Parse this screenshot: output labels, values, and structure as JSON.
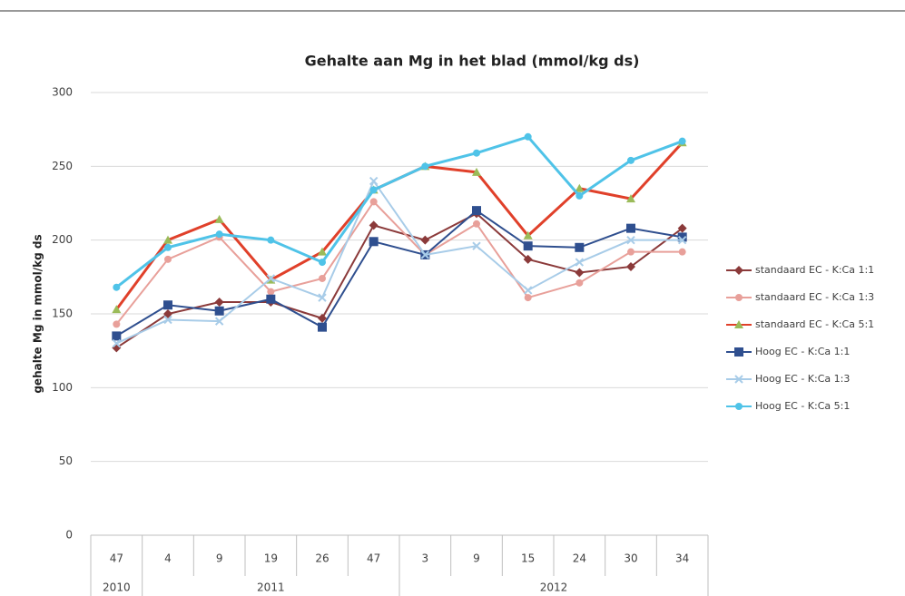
{
  "chart_data": {
    "type": "line",
    "title": "Gehalte aan Mg in het blad (mmol/kg ds)",
    "y_label": "gehalte Mg in mmol/kg ds",
    "categories": [
      "47",
      "4",
      "9",
      "19",
      "26",
      "47",
      "3",
      "9",
      "15",
      "24",
      "30",
      "34"
    ],
    "years": [
      "2010",
      "2011",
      "2011",
      "2011",
      "2011",
      "2011",
      "2012",
      "2012",
      "2012",
      "2012",
      "2012",
      "2012"
    ],
    "ylim": [
      0,
      300
    ],
    "yticks": [
      0,
      50,
      100,
      150,
      200,
      250,
      300
    ],
    "grid": true,
    "series": [
      {
        "name": "standaard EC - K:Ca 1:1",
        "color": "#8b3a3a",
        "marker_color": "#8b3a3a",
        "marker": "diamond",
        "values": [
          127,
          150,
          158,
          158,
          147,
          210,
          200,
          218,
          187,
          178,
          182,
          208
        ]
      },
      {
        "name": "standaard EC - K:Ca 1:3",
        "color": "#e8a09a",
        "marker_color": "#e8a09a",
        "marker": "circle",
        "values": [
          143,
          187,
          202,
          165,
          174,
          226,
          190,
          211,
          161,
          171,
          192,
          192
        ]
      },
      {
        "name": "standaard EC - K:Ca 5:1",
        "color": "#e0402a",
        "marker_color": "#9bbb59",
        "marker": "triangle",
        "values": [
          153,
          200,
          214,
          173,
          192,
          234,
          250,
          246,
          203,
          235,
          228,
          266
        ]
      },
      {
        "name": "Hoog EC - K:Ca 1:1",
        "color": "#2f4f8f",
        "marker_color": "#2f4f8f",
        "marker": "square",
        "values": [
          135,
          156,
          152,
          160,
          141,
          199,
          190,
          220,
          196,
          195,
          208,
          202
        ]
      },
      {
        "name": "Hoog EC - K:Ca 1:3",
        "color": "#a8cce8",
        "marker_color": "#a8cce8",
        "marker": "x",
        "values": [
          130,
          146,
          145,
          174,
          161,
          240,
          190,
          196,
          166,
          185,
          200,
          200
        ]
      },
      {
        "name": "Hoog EC - K:Ca 5:1",
        "color": "#4fc3e8",
        "marker_color": "#4fc3e8",
        "marker": "circle",
        "values": [
          168,
          195,
          204,
          200,
          185,
          234,
          250,
          259,
          270,
          230,
          254,
          267
        ]
      }
    ]
  }
}
